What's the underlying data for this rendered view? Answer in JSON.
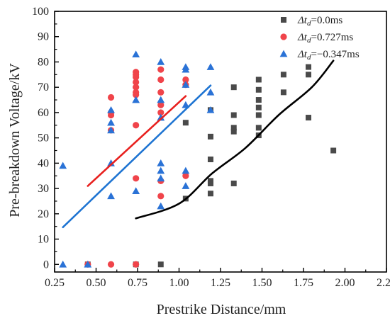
{
  "chart_data": {
    "type": "scatter",
    "xlabel": "Prestrike Distance/mm",
    "ylabel": "Pre-breakdown Voltage/kV",
    "xlim": [
      0.25,
      2.25
    ],
    "ylim": [
      -3,
      100
    ],
    "x_ticks": [
      0.25,
      0.5,
      0.75,
      1.0,
      1.25,
      1.5,
      1.75,
      2.0,
      2.25
    ],
    "x_tick_labels": [
      "0.25",
      "0.50",
      "0.75",
      "1.00",
      "1.25",
      "1.50",
      "1.75",
      "2.00",
      "2.25"
    ],
    "y_ticks": [
      0,
      10,
      20,
      30,
      40,
      50,
      60,
      70,
      80,
      90,
      100
    ],
    "y_tick_labels": [
      "0",
      "10",
      "20",
      "30",
      "40",
      "50",
      "60",
      "70",
      "80",
      "90",
      "100"
    ],
    "grid": false,
    "legend_position": "top-right",
    "series": [
      {
        "name": "Δtd=0.0ms",
        "legend_parts": [
          "Δt",
          "d",
          "=0.0ms"
        ],
        "marker": "square",
        "color": "#4a4a4a",
        "points": [
          [
            0.45,
            0
          ],
          [
            0.74,
            0
          ],
          [
            0.89,
            0
          ],
          [
            1.04,
            26
          ],
          [
            1.04,
            56
          ],
          [
            1.19,
            28
          ],
          [
            1.19,
            32
          ],
          [
            1.19,
            33
          ],
          [
            1.19,
            41.5
          ],
          [
            1.19,
            50.5
          ],
          [
            1.19,
            61
          ],
          [
            1.33,
            32
          ],
          [
            1.33,
            52.5
          ],
          [
            1.33,
            54
          ],
          [
            1.33,
            59
          ],
          [
            1.33,
            70
          ],
          [
            1.48,
            51
          ],
          [
            1.48,
            54
          ],
          [
            1.48,
            59
          ],
          [
            1.48,
            62
          ],
          [
            1.48,
            65
          ],
          [
            1.48,
            69
          ],
          [
            1.48,
            73
          ],
          [
            1.63,
            68
          ],
          [
            1.63,
            75
          ],
          [
            1.78,
            58
          ],
          [
            1.78,
            75
          ],
          [
            1.78,
            78
          ],
          [
            1.93,
            45
          ]
        ]
      },
      {
        "name": "Δtd=0.727ms",
        "legend_parts": [
          "Δt",
          "d",
          "=0.727ms"
        ],
        "marker": "circle",
        "color": "#f0444a",
        "points": [
          [
            0.45,
            0
          ],
          [
            0.59,
            0
          ],
          [
            0.59,
            53
          ],
          [
            0.59,
            59
          ],
          [
            0.59,
            60
          ],
          [
            0.59,
            66
          ],
          [
            0.74,
            0
          ],
          [
            0.74,
            34
          ],
          [
            0.74,
            55
          ],
          [
            0.74,
            67
          ],
          [
            0.74,
            68
          ],
          [
            0.74,
            70
          ],
          [
            0.74,
            72
          ],
          [
            0.74,
            74
          ],
          [
            0.74,
            75
          ],
          [
            0.74,
            76
          ],
          [
            0.89,
            27
          ],
          [
            0.89,
            33
          ],
          [
            0.89,
            60
          ],
          [
            0.89,
            63
          ],
          [
            0.89,
            68
          ],
          [
            0.89,
            73
          ],
          [
            0.89,
            77
          ],
          [
            1.04,
            35
          ],
          [
            1.04,
            71
          ],
          [
            1.04,
            73
          ]
        ]
      },
      {
        "name": "Δtd=−0.347ms",
        "legend_parts": [
          "Δt",
          "d",
          "=−0.347ms"
        ],
        "marker": "triangle",
        "color": "#2a72d6",
        "points": [
          [
            0.3,
            0
          ],
          [
            0.3,
            39
          ],
          [
            0.45,
            0
          ],
          [
            0.59,
            27
          ],
          [
            0.59,
            40
          ],
          [
            0.59,
            53
          ],
          [
            0.59,
            56
          ],
          [
            0.59,
            61
          ],
          [
            0.74,
            29
          ],
          [
            0.74,
            65
          ],
          [
            0.74,
            83
          ],
          [
            0.89,
            23
          ],
          [
            0.89,
            34
          ],
          [
            0.89,
            37
          ],
          [
            0.89,
            40
          ],
          [
            0.89,
            58
          ],
          [
            0.89,
            65
          ],
          [
            0.89,
            80
          ],
          [
            1.04,
            31
          ],
          [
            1.04,
            37
          ],
          [
            1.04,
            63
          ],
          [
            1.04,
            71
          ],
          [
            1.04,
            77
          ],
          [
            1.04,
            78
          ],
          [
            1.19,
            61
          ],
          [
            1.19,
            68
          ],
          [
            1.19,
            78
          ]
        ]
      }
    ],
    "fit_lines": [
      {
        "series": "Δtd=0.727ms",
        "color": "#e8201e",
        "kind": "linear",
        "points": [
          [
            0.45,
            31
          ],
          [
            1.04,
            66.5
          ]
        ]
      },
      {
        "series": "Δtd=−0.347ms",
        "color": "#1e74d2",
        "kind": "linear",
        "points": [
          [
            0.3,
            14.7
          ],
          [
            1.19,
            70.7
          ]
        ]
      },
      {
        "series": "Δtd=0.0ms",
        "color": "#000000",
        "kind": "curve",
        "points": [
          [
            0.74,
            18.2
          ],
          [
            1.0,
            24
          ],
          [
            1.2,
            36
          ],
          [
            1.4,
            46
          ],
          [
            1.6,
            59
          ],
          [
            1.8,
            70
          ],
          [
            1.93,
            80.5
          ]
        ]
      }
    ]
  }
}
